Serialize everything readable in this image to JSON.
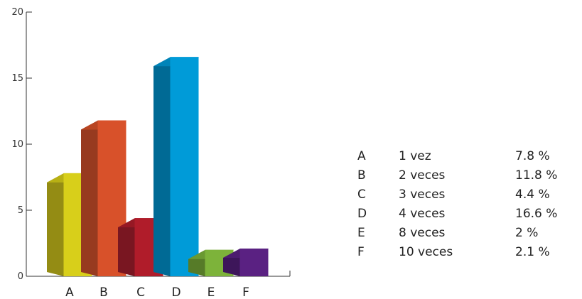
{
  "chart_data": {
    "type": "bar",
    "style": "3d",
    "categories": [
      "A",
      "B",
      "C",
      "D",
      "E",
      "F"
    ],
    "values": [
      7.8,
      11.8,
      4.4,
      16.6,
      2,
      2.1
    ],
    "ylim": [
      0,
      20
    ],
    "yticks": [
      0,
      5,
      10,
      15,
      20
    ],
    "ytick_labels": [
      "0",
      "5",
      "10",
      "15",
      "20"
    ],
    "colors": [
      "#d8cf1a",
      "#d8512a",
      "#b01c2a",
      "#009bd8",
      "#7db33a",
      "#5a2182"
    ],
    "side_colors": [
      "#948c14",
      "#973a1f",
      "#791621",
      "#006a95",
      "#567b28",
      "#3d165a"
    ],
    "top_colors": [
      "#b8b014",
      "#b94522",
      "#961824",
      "#0084b8",
      "#6a9932",
      "#4c1c6f"
    ],
    "grid": false,
    "title": "",
    "xlabel": "",
    "ylabel": ""
  },
  "legend": {
    "placement": "right",
    "rows": [
      {
        "code": "A",
        "desc": "1 vez",
        "pct": "7.8 %"
      },
      {
        "code": "B",
        "desc": "2 veces",
        "pct": "11.8 %"
      },
      {
        "code": "C",
        "desc": "3 veces",
        "pct": "4.4 %"
      },
      {
        "code": "D",
        "desc": "4 veces",
        "pct": "16.6 %"
      },
      {
        "code": "E",
        "desc": "8 veces",
        "pct": "2 %"
      },
      {
        "code": "F",
        "desc": "10 veces",
        "pct": "2.1 %"
      }
    ]
  }
}
